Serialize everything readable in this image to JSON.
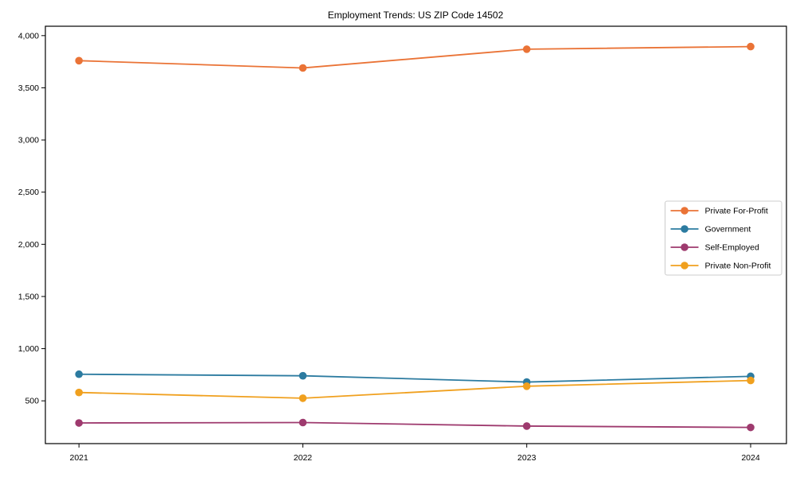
{
  "chart_data": {
    "type": "line",
    "title": "Employment Trends: US ZIP Code 14502",
    "x": [
      2021,
      2022,
      2023,
      2024
    ],
    "series": [
      {
        "name": "Private For-Profit",
        "color": "#ea7336",
        "values": [
          3760,
          3690,
          3870,
          3895
        ]
      },
      {
        "name": "Government",
        "color": "#2c7ba0",
        "values": [
          755,
          740,
          680,
          735
        ]
      },
      {
        "name": "Self-Employed",
        "color": "#9e3a6e",
        "values": [
          288,
          292,
          258,
          245
        ]
      },
      {
        "name": "Private Non-Profit",
        "color": "#f0a01e",
        "values": [
          580,
          525,
          640,
          695
        ]
      }
    ],
    "xlabel": "",
    "ylabel": "",
    "ylim": [
      90,
      4090
    ],
    "xlim": [
      2020.85,
      2024.16
    ],
    "yticks": [
      500,
      1000,
      1500,
      2000,
      2500,
      3000,
      3500,
      4000
    ],
    "xticks": [
      2021,
      2022,
      2023,
      2024
    ],
    "grid": false,
    "legend_position": "center right",
    "legend_border_color": "#cccccc",
    "axis_color": "#000000",
    "background_color": "#ffffff",
    "marker": "circle"
  }
}
